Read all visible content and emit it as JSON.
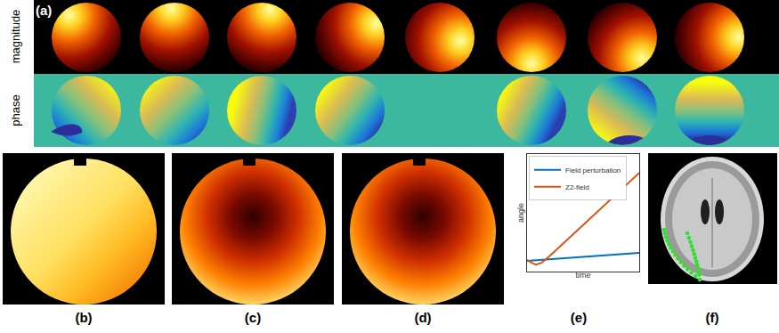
{
  "figure": {
    "panel_a": {
      "label": "(a)",
      "rows": [
        "magnitude",
        "phase"
      ]
    },
    "panel_labels": [
      "(b)",
      "(c)",
      "(d)",
      "(e)",
      "(f)"
    ]
  },
  "chart_data": {
    "type": "line",
    "xlabel": "time",
    "ylabel": "angle",
    "xlim": [
      0,
      10
    ],
    "ylim": [
      0,
      10
    ],
    "tick_labels": false,
    "legend": "top left",
    "series": [
      {
        "name": "Field perturbation",
        "color": "#0072bd",
        "x": [
          0,
          10
        ],
        "values": [
          0.9,
          1.6
        ]
      },
      {
        "name": "Z2-field",
        "color": "#d95319",
        "x": [
          0,
          0.4,
          0.8,
          1.3,
          2,
          10
        ],
        "values": [
          1.0,
          0.75,
          0.6,
          0.75,
          1.3,
          8.4
        ]
      }
    ]
  }
}
